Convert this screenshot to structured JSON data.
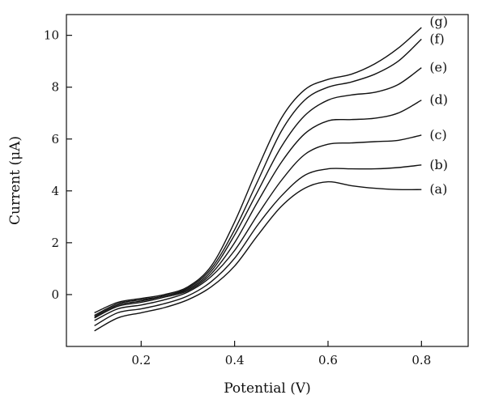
{
  "chart_data": {
    "type": "line",
    "title": "",
    "xlabel": "Potential (V)",
    "ylabel": "Current (μA)",
    "xlim": [
      0.04,
      0.9
    ],
    "ylim": [
      -2.0,
      10.8
    ],
    "xticks": [
      0.2,
      0.4,
      0.6,
      0.8
    ],
    "yticks": [
      0,
      2,
      4,
      6,
      8,
      10
    ],
    "grid": false,
    "legend": "none (labels at curve ends)",
    "line_color": "#111111",
    "x": [
      0.1,
      0.15,
      0.2,
      0.25,
      0.3,
      0.35,
      0.4,
      0.45,
      0.5,
      0.55,
      0.6,
      0.65,
      0.7,
      0.75,
      0.8
    ],
    "series": [
      {
        "name": "(a)",
        "values": [
          -1.4,
          -0.9,
          -0.7,
          -0.5,
          -0.2,
          0.3,
          1.1,
          2.3,
          3.4,
          4.1,
          4.35,
          4.2,
          4.1,
          4.05,
          4.05
        ]
      },
      {
        "name": "(b)",
        "values": [
          -1.2,
          -0.7,
          -0.55,
          -0.35,
          -0.05,
          0.5,
          1.4,
          2.7,
          3.8,
          4.6,
          4.85,
          4.85,
          4.85,
          4.9,
          5.0
        ]
      },
      {
        "name": "(c)",
        "values": [
          -1.0,
          -0.55,
          -0.4,
          -0.2,
          0.1,
          0.7,
          1.7,
          3.1,
          4.4,
          5.4,
          5.8,
          5.85,
          5.9,
          5.95,
          6.15
        ]
      },
      {
        "name": "(d)",
        "values": [
          -0.9,
          -0.45,
          -0.3,
          -0.1,
          0.15,
          0.8,
          2.0,
          3.6,
          5.1,
          6.2,
          6.7,
          6.75,
          6.8,
          7.0,
          7.5
        ]
      },
      {
        "name": "(e)",
        "values": [
          -0.85,
          -0.4,
          -0.25,
          -0.05,
          0.2,
          0.9,
          2.3,
          4.0,
          5.7,
          6.9,
          7.5,
          7.7,
          7.8,
          8.1,
          8.75
        ]
      },
      {
        "name": "(f)",
        "values": [
          -0.8,
          -0.35,
          -0.2,
          -0.05,
          0.25,
          1.0,
          2.5,
          4.4,
          6.3,
          7.5,
          8.0,
          8.2,
          8.5,
          9.0,
          9.85
        ]
      },
      {
        "name": "(g)",
        "values": [
          -0.7,
          -0.3,
          -0.15,
          0.0,
          0.3,
          1.1,
          2.8,
          4.9,
          6.8,
          7.9,
          8.3,
          8.5,
          8.9,
          9.5,
          10.3
        ]
      }
    ]
  }
}
